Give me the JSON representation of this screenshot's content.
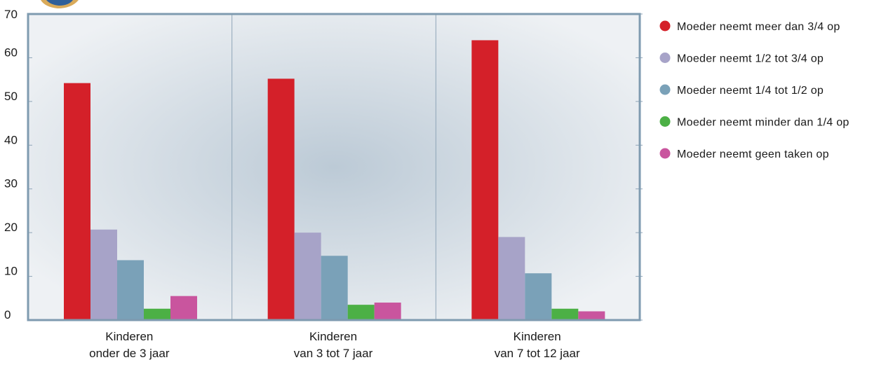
{
  "chart_data": {
    "type": "bar",
    "title": "",
    "xlabel": "",
    "ylabel": "",
    "ylim": [
      0,
      70
    ],
    "yticks": [
      0,
      10,
      20,
      30,
      40,
      50,
      60,
      70
    ],
    "grid": true,
    "legend_position": "right",
    "categories": [
      [
        "Kinderen",
        "onder de 3 jaar"
      ],
      [
        "Kinderen",
        "van 3 tot 7 jaar"
      ],
      [
        "Kinderen",
        "van 7 tot 12 jaar"
      ]
    ],
    "series": [
      {
        "name": "Moeder neemt meer dan 3/4 op",
        "color": "#d42029",
        "values": [
          54.2,
          55.2,
          64.0
        ]
      },
      {
        "name": "Moeder neemt 1/2 tot 3/4 op",
        "color": "#a7a3c8",
        "values": [
          20.7,
          20.0,
          19.0
        ]
      },
      {
        "name": "Moeder neemt 1/4 tot 1/2 op",
        "color": "#7aa1b8",
        "values": [
          13.7,
          14.7,
          10.7
        ]
      },
      {
        "name": "Moeder neemt minder dan 1/4 op",
        "color": "#4cb045",
        "values": [
          2.6,
          3.5,
          2.6
        ]
      },
      {
        "name": "Moeder neemt geen taken op",
        "color": "#c9559e",
        "values": [
          5.5,
          4.0,
          2.0
        ]
      }
    ]
  },
  "colors": {
    "plot_border": "#7f9bb0",
    "grid": "#8fa5b8",
    "plot_bg_center": "#bccad6",
    "plot_bg_edge": "#eef1f4"
  }
}
